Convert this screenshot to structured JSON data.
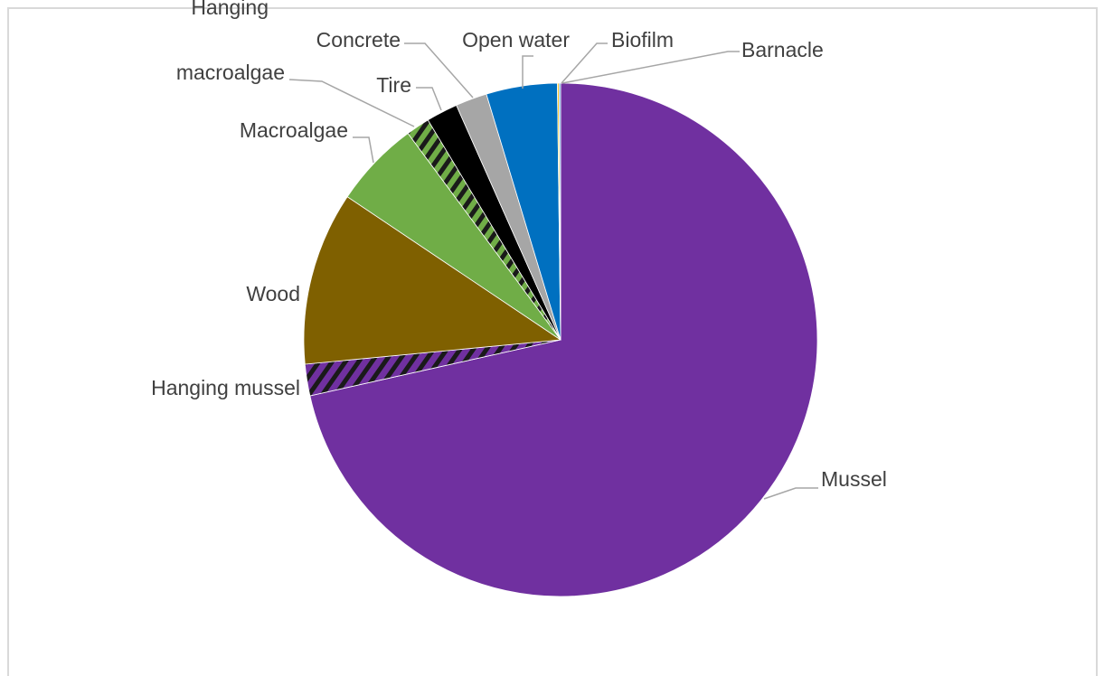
{
  "chart_data": {
    "type": "pie",
    "title": "",
    "start_angle_deg": 0,
    "direction": "clockwise",
    "slices": [
      {
        "label": "Mussel",
        "value": 72.0,
        "color": "#7030a0",
        "pattern": "none"
      },
      {
        "label": "Hanging mussel",
        "value": 2.0,
        "color": "#7030a0",
        "pattern": "diagonal-hatch"
      },
      {
        "label": "Wood",
        "value": 11.0,
        "color": "#7f6000",
        "pattern": "none"
      },
      {
        "label": "Macroalgae",
        "value": 5.5,
        "color": "#70ad47",
        "pattern": "none"
      },
      {
        "label": "Hanging macroalgae",
        "value": 1.5,
        "color": "#70ad47",
        "pattern": "diagonal-hatch"
      },
      {
        "label": "Tire",
        "value": 2.0,
        "color": "#000000",
        "pattern": "none"
      },
      {
        "label": "Concrete",
        "value": 2.0,
        "color": "#a6a6a6",
        "pattern": "none"
      },
      {
        "label": "Open water",
        "value": 4.5,
        "color": "#0070c0",
        "pattern": "none"
      },
      {
        "label": "Biofilm",
        "value": 0.1,
        "color": "#ffc000",
        "pattern": "none"
      },
      {
        "label": "Barnacle",
        "value": 0.1,
        "color": "#5b9bd5",
        "pattern": "none"
      }
    ],
    "legend": "none",
    "data_labels": "category names with leader lines"
  }
}
